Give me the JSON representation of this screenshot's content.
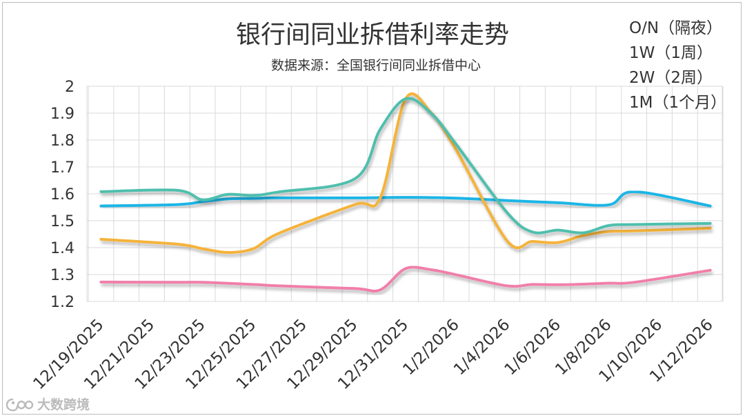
{
  "chart_data": {
    "type": "line",
    "title": "银行间同业拆借利率走势",
    "subtitle": "数据来源：全国银行间同业拆借中心",
    "x_tick_labels": [
      "12/19/2025",
      "12/21/2025",
      "12/23/2025",
      "12/25/2025",
      "12/27/2025",
      "12/29/2025",
      "12/31/2025",
      "1/2/2026",
      "1/4/2026",
      "1/6/2026",
      "1/8/2026",
      "1/10/2026",
      "1/12/2026"
    ],
    "ylim": [
      1.2,
      2.0
    ],
    "y_ticks": [
      "2",
      "1.9",
      "1.8",
      "1.7",
      "1.6",
      "1.5",
      "1.4",
      "1.3",
      "1.2"
    ],
    "grid": true,
    "legend_position": "top-right",
    "series": [
      {
        "name": "O/N（隔夜）",
        "color": "#f07fa9",
        "points": [
          [
            "12/19/2025",
            1.272
          ],
          [
            "12/22/2025",
            1.271
          ],
          [
            "12/23/2025",
            1.271
          ],
          [
            "12/25/2025",
            1.263
          ],
          [
            "12/26/2025",
            1.258
          ],
          [
            "12/29/2025",
            1.248
          ],
          [
            "12/30/2025",
            1.243
          ],
          [
            "12/31/2025",
            1.322
          ],
          [
            "1/1/2026",
            1.318
          ],
          [
            "1/2/2026",
            1.299
          ],
          [
            "1/4/2026",
            1.258
          ],
          [
            "1/5/2026",
            1.263
          ],
          [
            "1/6/2026",
            1.262
          ],
          [
            "1/7/2026",
            1.264
          ],
          [
            "1/8/2026",
            1.268
          ],
          [
            "1/9/2026",
            1.271
          ],
          [
            "1/12/2026",
            1.316
          ]
        ]
      },
      {
        "name": "1W（1周）",
        "color": "#f5b33b",
        "points": [
          [
            "12/19/2025",
            1.431
          ],
          [
            "12/22/2025",
            1.413
          ],
          [
            "12/23/2025",
            1.396
          ],
          [
            "12/24/2025",
            1.382
          ],
          [
            "12/25/2025",
            1.396
          ],
          [
            "12/26/2025",
            1.453
          ],
          [
            "12/29/2025",
            1.56
          ],
          [
            "12/30/2025",
            1.585
          ],
          [
            "12/31/2025",
            1.953
          ],
          [
            "1/1/2026",
            1.902
          ],
          [
            "1/2/2026",
            1.762
          ],
          [
            "1/4/2026",
            1.425
          ],
          [
            "1/5/2026",
            1.423
          ],
          [
            "1/6/2026",
            1.419
          ],
          [
            "1/7/2026",
            1.445
          ],
          [
            "1/8/2026",
            1.46
          ],
          [
            "1/9/2026",
            1.462
          ],
          [
            "1/12/2026",
            1.472
          ]
        ]
      },
      {
        "name": "2W（2周）",
        "color": "#4fbfad",
        "points": [
          [
            "12/19/2025",
            1.608
          ],
          [
            "12/22/2025",
            1.613
          ],
          [
            "12/23/2025",
            1.578
          ],
          [
            "12/24/2025",
            1.598
          ],
          [
            "12/25/2025",
            1.594
          ],
          [
            "12/26/2025",
            1.607
          ],
          [
            "12/29/2025",
            1.656
          ],
          [
            "12/30/2025",
            1.84
          ],
          [
            "12/31/2025",
            1.953
          ],
          [
            "1/1/2026",
            1.9
          ],
          [
            "1/2/2026",
            1.783
          ],
          [
            "1/4/2026",
            1.53
          ],
          [
            "1/5/2026",
            1.458
          ],
          [
            "1/6/2026",
            1.465
          ],
          [
            "1/7/2026",
            1.455
          ],
          [
            "1/8/2026",
            1.482
          ],
          [
            "1/9/2026",
            1.486
          ],
          [
            "1/12/2026",
            1.49
          ]
        ]
      },
      {
        "name": "1M（1个月）",
        "color": "#1fb5e6",
        "points": [
          [
            "12/19/2025",
            1.555
          ],
          [
            "12/22/2025",
            1.56
          ],
          [
            "12/23/2025",
            1.571
          ],
          [
            "12/24/2025",
            1.581
          ],
          [
            "12/25/2025",
            1.583
          ],
          [
            "12/26/2025",
            1.585
          ],
          [
            "12/29/2025",
            1.585
          ],
          [
            "12/31/2025",
            1.587
          ],
          [
            "1/2/2026",
            1.584
          ],
          [
            "1/4/2026",
            1.575
          ],
          [
            "1/6/2026",
            1.567
          ],
          [
            "1/8/2026",
            1.559
          ],
          [
            "1/9/2026",
            1.608
          ],
          [
            "1/12/2026",
            1.555
          ]
        ]
      }
    ]
  },
  "watermark": {
    "text": "大数跨境",
    "icon": "logo-icon"
  }
}
